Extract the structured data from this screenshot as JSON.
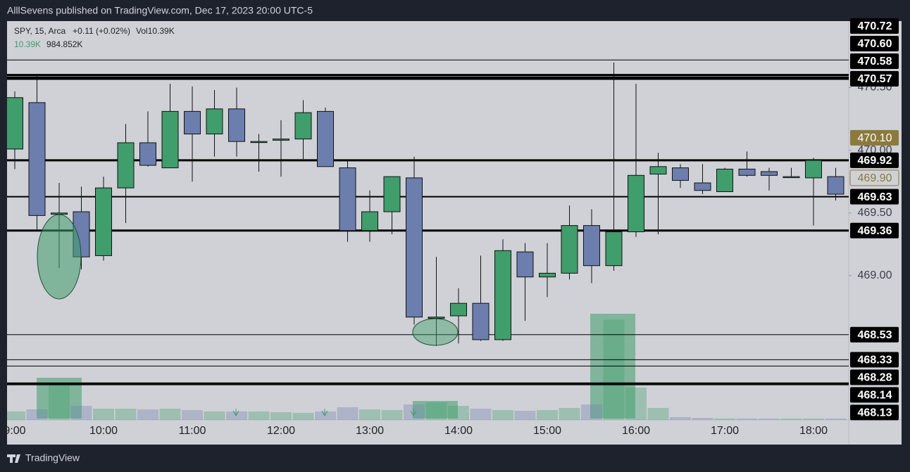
{
  "header": {
    "publisher": "AlllSevens published on TradingView.com, Dec 17, 2023 20:00 UTC-5",
    "brand": "TradingView"
  },
  "chart_data": {
    "type": "candlestick",
    "legend": {
      "symbol": "SPY, 15, Arca",
      "change": "+0.11 (+0.02%)",
      "volume": "Vol10.39K",
      "line2_a": "10.39K",
      "line2_b": "984.852K"
    },
    "categories": [
      "9:00",
      null,
      null,
      null,
      "10:00",
      null,
      null,
      null,
      "11:00",
      null,
      null,
      null,
      "12:00",
      null,
      null,
      null,
      "13:00",
      null,
      null,
      null,
      "14:00",
      null,
      null,
      null,
      "15:00",
      null,
      null,
      null,
      "16:00",
      null,
      null,
      null,
      "17:00",
      null,
      null,
      null,
      "18:00",
      null
    ],
    "open": [
      470.01,
      470.38,
      469.49,
      469.51,
      469.16,
      469.7,
      470.06,
      469.86,
      470.31,
      470.13,
      470.33,
      470.07,
      470.08,
      470.09,
      470.31,
      469.86,
      469.36,
      469.51,
      469.78,
      468.66,
      468.68,
      468.78,
      468.49,
      469.19,
      468.99,
      469.02,
      469.4,
      469.08,
      469.35,
      469.81,
      469.86,
      469.74,
      469.67,
      469.85,
      469.83,
      469.79,
      469.78,
      469.79
    ],
    "high": [
      470.47,
      470.61,
      469.74,
      469.71,
      469.79,
      470.21,
      470.31,
      470.53,
      470.51,
      470.48,
      470.5,
      470.13,
      470.24,
      470.4,
      470.34,
      469.92,
      469.68,
      469.79,
      469.95,
      469.15,
      468.9,
      469.16,
      469.29,
      469.26,
      469.26,
      469.56,
      469.53,
      470.7,
      470.53,
      469.98,
      469.89,
      469.89,
      469.86,
      469.99,
      469.86,
      469.86,
      469.94,
      469.86
    ],
    "low": [
      469.85,
      469.37,
      469.06,
      469.05,
      469.12,
      469.42,
      469.87,
      469.86,
      469.75,
      469.95,
      469.95,
      469.83,
      469.79,
      469.93,
      469.87,
      469.27,
      469.27,
      469.33,
      468.61,
      468.44,
      468.46,
      468.48,
      468.48,
      468.64,
      468.83,
      468.97,
      468.94,
      469.04,
      469.31,
      469.33,
      469.7,
      469.65,
      469.67,
      469.79,
      469.68,
      469.78,
      469.4,
      469.6
    ],
    "close": [
      470.42,
      469.48,
      469.5,
      469.15,
      469.7,
      470.06,
      469.88,
      470.31,
      470.13,
      470.33,
      470.07,
      470.07,
      470.09,
      470.3,
      469.87,
      469.36,
      469.51,
      469.79,
      468.67,
      468.67,
      468.78,
      468.49,
      469.2,
      468.99,
      469.02,
      469.4,
      469.08,
      469.35,
      469.8,
      469.87,
      469.76,
      469.68,
      469.85,
      469.8,
      469.8,
      469.79,
      469.92,
      469.65
    ],
    "volume": [
      60,
      75,
      250,
      100,
      80,
      80,
      75,
      80,
      70,
      60,
      60,
      60,
      55,
      50,
      60,
      90,
      75,
      70,
      110,
      125,
      100,
      80,
      70,
      65,
      70,
      85,
      110,
      710,
      230,
      85,
      20,
      15,
      10,
      10,
      10,
      10,
      10,
      10
    ],
    "vlim": [
      0,
      2825
    ],
    "up_color": "#3f9e6c",
    "down_color": "#6c7eae",
    "ylim": [
      467.85,
      471.03
    ],
    "yticks": [
      {
        "value": 469,
        "label": "469.00"
      },
      {
        "value": 469.5,
        "label": "469.50"
      },
      {
        "value": 470,
        "label": "470.00"
      },
      {
        "value": 470.5,
        "label": "470.50"
      }
    ],
    "levels": [
      {
        "value": 470.72,
        "style": "thin"
      },
      {
        "value": 470.6,
        "label": "470.60",
        "style": "thick"
      },
      {
        "value": 470.58,
        "style": "thick"
      },
      {
        "value": 470.57,
        "style": "thick"
      },
      {
        "value": 469.92,
        "style": "thick"
      },
      {
        "value": 469.63,
        "style": "medium"
      },
      {
        "value": 469.36,
        "style": "thick"
      },
      {
        "value": 468.53,
        "style": "thin"
      },
      {
        "value": 468.33,
        "style": "thin"
      },
      {
        "value": 468.28,
        "style": "thin"
      },
      {
        "value": 468.14,
        "style": "thick"
      },
      {
        "value": 468.13,
        "style": "thin"
      }
    ],
    "price_labels": [
      {
        "value": 470.1,
        "label": "470.10",
        "style": "last"
      },
      {
        "value": 469.9,
        "label": "469.90",
        "style": "outline"
      }
    ]
  }
}
